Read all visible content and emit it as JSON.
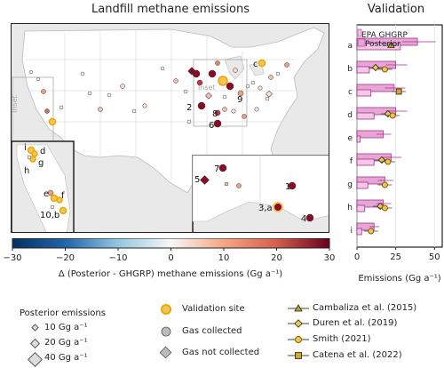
{
  "title_map": "Landfill methane emissions",
  "title_validation": "Validation",
  "map_labels": {
    "inset_left": "Inset",
    "inset_mid": "Inset"
  },
  "colorbar": {
    "label": "Δ (Posterior - GHGRP) methane emissions (Gg a⁻¹)",
    "ticks": [
      "−30",
      "−20",
      "−10",
      "0",
      "10",
      "20",
      "30"
    ],
    "min": -30,
    "max": 30
  },
  "site_labels": [
    "a",
    "b",
    "c",
    "d",
    "e",
    "f",
    "g",
    "h",
    "i",
    "1",
    "2",
    "3,a",
    "4",
    "5",
    "6",
    "7",
    "8",
    "9",
    "10,b"
  ],
  "legend_size": {
    "title": "Posterior emissions",
    "items": [
      "10 Gg a⁻¹",
      "20 Gg a⁻¹",
      "40 Gg a⁻¹"
    ]
  },
  "legend_site": {
    "items": [
      "Validation site",
      "Gas collected",
      "Gas not collected"
    ]
  },
  "legend_studies": {
    "items": [
      "Cambaliza et al. (2015)",
      "Duren et al. (2019)",
      "Smith (2021)",
      "Catena et al. (2022)"
    ]
  },
  "chart_data": {
    "type": "bar",
    "orientation": "horizontal",
    "categories": [
      "a",
      "b",
      "c",
      "d",
      "e",
      "f",
      "g",
      "h",
      "i"
    ],
    "series": [
      {
        "name": "EPA GHGRP",
        "values": [
          28,
          8,
          9,
          11,
          2,
          11,
          7,
          5,
          3
        ]
      },
      {
        "name": "Posterior",
        "values": [
          39,
          25,
          24,
          25,
          17,
          22,
          18,
          17,
          11
        ]
      }
    ],
    "xlim": [
      0,
      55
    ],
    "xticks": [
      "0",
      "25",
      "50"
    ],
    "xlabel": "Emissions (Gg a⁻¹)",
    "studies": [
      {
        "name": "Cambaliza et al. (2015)",
        "points": [
          {
            "category": "a",
            "value": 22
          }
        ]
      },
      {
        "name": "Duren et al. (2019)",
        "points": [
          {
            "category": "b",
            "value": 12
          },
          {
            "category": "d",
            "value": 20
          },
          {
            "category": "f",
            "value": 16
          },
          {
            "category": "h",
            "value": 15
          }
        ]
      },
      {
        "name": "Smith (2021)",
        "points": [
          {
            "category": "b",
            "value": 18
          },
          {
            "category": "d",
            "value": 23
          },
          {
            "category": "f",
            "value": 20
          },
          {
            "category": "g",
            "value": 18
          },
          {
            "category": "h",
            "value": 18
          },
          {
            "category": "i",
            "value": 9
          }
        ]
      },
      {
        "name": "Catena et al. (2022)",
        "points": [
          {
            "category": "c",
            "value": 27
          }
        ]
      }
    ],
    "colors": {
      "ghgrp": "#f6c7e6",
      "posterior": "#e8a6d7",
      "edge": "#a0358a"
    }
  }
}
